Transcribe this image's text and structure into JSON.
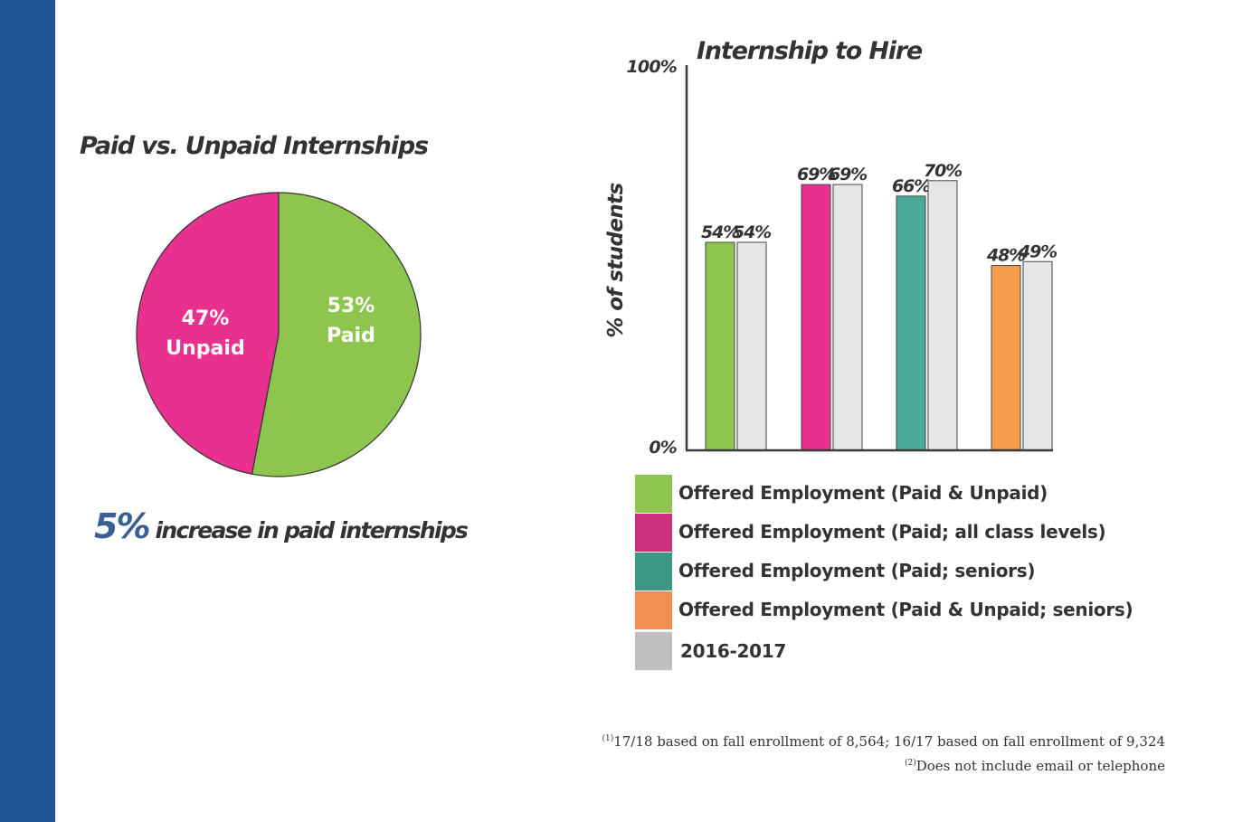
{
  "colors": {
    "stripe": "#1f5594",
    "paid": "#8dc54e",
    "unpaid": "#e8308f",
    "teal": "#4aaa9a",
    "orange": "#f59b4c",
    "grey": "#e6e6e6",
    "increase_blue": "#3a5f92"
  },
  "pie_title": "Paid vs. Unpaid Internships",
  "pie_labels": {
    "unpaid_pct": "47%",
    "unpaid_word": "Unpaid",
    "paid_pct": "53%",
    "paid_word": "Paid"
  },
  "increase": {
    "big": "5%",
    "text": " increase in paid internships"
  },
  "legend": [
    {
      "label": "Offered Employment (Paid & Unpaid)",
      "color": "#8dc54e"
    },
    {
      "label": "Offered Employment (Paid; all class levels)",
      "color": "#c9317e"
    },
    {
      "label": "Offered Employment (Paid; seniors)",
      "color": "#3a9884"
    },
    {
      "label": "Offered Employment (Paid & Unpaid; seniors)",
      "color": "#f28f50"
    },
    {
      "label": "2016-2017",
      "color": "#bfbfbf"
    }
  ],
  "footnotes": {
    "line1_sup": "(1)",
    "line1": "17/18 based on fall enrollment of 8,564; 16/17 based on fall enrollment of 9,324",
    "line2_sup": "(2)",
    "line2": "Does not include email or telephone"
  },
  "chart_data": [
    {
      "type": "pie",
      "title": "Paid vs. Unpaid Internships",
      "slices": [
        {
          "label": "Paid",
          "value": 53,
          "color": "#8dc54e"
        },
        {
          "label": "Unpaid",
          "value": 47,
          "color": "#e8308f"
        }
      ]
    },
    {
      "type": "bar",
      "title": "Internship to Hire",
      "ylabel": "% of students",
      "ylim": [
        0,
        100
      ],
      "y_tick_labels": [
        "100%",
        "0%"
      ],
      "grid": false,
      "legend_position": "bottom",
      "groups": [
        {
          "current": 54,
          "previous": 54,
          "current_label": "54%",
          "previous_label": "54%",
          "color": "#8dc54e"
        },
        {
          "current": 69,
          "previous": 69,
          "current_label": "69%",
          "previous_label": "69%",
          "color": "#e8308f"
        },
        {
          "current": 66,
          "previous": 70,
          "current_label": "66%",
          "previous_label": "70%",
          "color": "#4aaa9a"
        },
        {
          "current": 48,
          "previous": 49,
          "current_label": "48%",
          "previous_label": "49%",
          "color": "#f59b4c"
        }
      ],
      "previous_color": "#e6e6e6"
    }
  ]
}
